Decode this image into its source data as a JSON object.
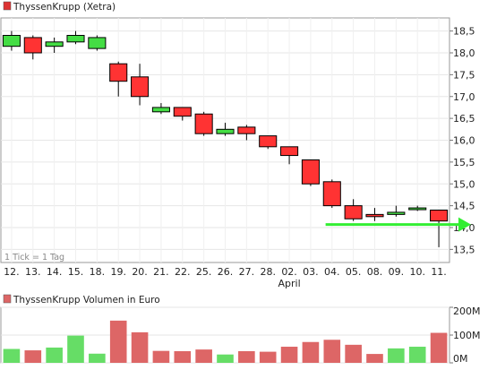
{
  "chart_data": [
    {
      "type": "candlestick",
      "legend": "ThyssenKrupp (Xetra)",
      "note": "1 Tick = 1 Tag",
      "x_tick_labels": [
        "12.",
        "13.",
        "14.",
        "15.",
        "18.",
        "19.",
        "20.",
        "21.",
        "22.",
        "25.",
        "26.",
        "27.",
        "28.",
        "02.",
        "03.",
        "04.",
        "05.",
        "08.",
        "09.",
        "10.",
        "11."
      ],
      "x_sublabel": {
        "under": "02.",
        "text": "April"
      },
      "y_ticks": [
        "13,5",
        "14,0",
        "14,5",
        "15,0",
        "15,5",
        "16,0",
        "16,5",
        "17,0",
        "17,5",
        "18,0",
        "18,5"
      ],
      "ylim": [
        13.2,
        18.8
      ],
      "grid": true,
      "up_color": "#44dd44",
      "down_color": "#ff3333",
      "arrow_color": "#33ee33",
      "arrow_level": 14.07,
      "candles": [
        {
          "open": 18.15,
          "high": 18.5,
          "low": 18.05,
          "close": 18.4
        },
        {
          "open": 18.35,
          "high": 18.4,
          "low": 17.85,
          "close": 18.0
        },
        {
          "open": 18.15,
          "high": 18.35,
          "low": 18.0,
          "close": 18.25
        },
        {
          "open": 18.25,
          "high": 18.5,
          "low": 18.2,
          "close": 18.4
        },
        {
          "open": 18.1,
          "high": 18.4,
          "low": 18.05,
          "close": 18.35
        },
        {
          "open": 17.75,
          "high": 17.8,
          "low": 17.0,
          "close": 17.35
        },
        {
          "open": 17.45,
          "high": 17.75,
          "low": 16.8,
          "close": 17.0
        },
        {
          "open": 16.65,
          "high": 16.85,
          "low": 16.6,
          "close": 16.75
        },
        {
          "open": 16.75,
          "high": 16.75,
          "low": 16.45,
          "close": 16.55
        },
        {
          "open": 16.6,
          "high": 16.65,
          "low": 16.1,
          "close": 16.15
        },
        {
          "open": 16.15,
          "high": 16.4,
          "low": 16.1,
          "close": 16.25
        },
        {
          "open": 16.3,
          "high": 16.35,
          "low": 16.0,
          "close": 16.15
        },
        {
          "open": 16.1,
          "high": 16.1,
          "low": 15.8,
          "close": 15.85
        },
        {
          "open": 15.85,
          "high": 15.85,
          "low": 15.45,
          "close": 15.65
        },
        {
          "open": 15.55,
          "high": 15.55,
          "low": 14.95,
          "close": 15.0
        },
        {
          "open": 15.05,
          "high": 15.1,
          "low": 14.45,
          "close": 14.5
        },
        {
          "open": 14.5,
          "high": 14.65,
          "low": 14.15,
          "close": 14.2
        },
        {
          "open": 14.3,
          "high": 14.45,
          "low": 14.15,
          "close": 14.25
        },
        {
          "open": 14.3,
          "high": 14.5,
          "low": 14.25,
          "close": 14.35
        },
        {
          "open": 14.42,
          "high": 14.5,
          "low": 14.38,
          "close": 14.45
        },
        {
          "open": 14.4,
          "high": 14.4,
          "low": 13.55,
          "close": 14.15
        }
      ]
    },
    {
      "type": "bar",
      "legend": "ThyssenKrupp Volumen in Euro",
      "y_ticks": [
        "0M",
        "100M",
        "200M"
      ],
      "ylim": [
        0,
        200
      ],
      "grid": true,
      "values": [
        50,
        45,
        55,
        98,
        33,
        152,
        110,
        43,
        42,
        48,
        30,
        42,
        40,
        58,
        75,
        83,
        65,
        32,
        52,
        58,
        108
      ],
      "directions": [
        "up",
        "down",
        "up",
        "up",
        "up",
        "down",
        "down",
        "down",
        "down",
        "down",
        "up",
        "down",
        "down",
        "down",
        "down",
        "down",
        "down",
        "down",
        "up",
        "up",
        "down"
      ],
      "up_color": "#66dd66",
      "down_color": "#dd6666"
    }
  ]
}
